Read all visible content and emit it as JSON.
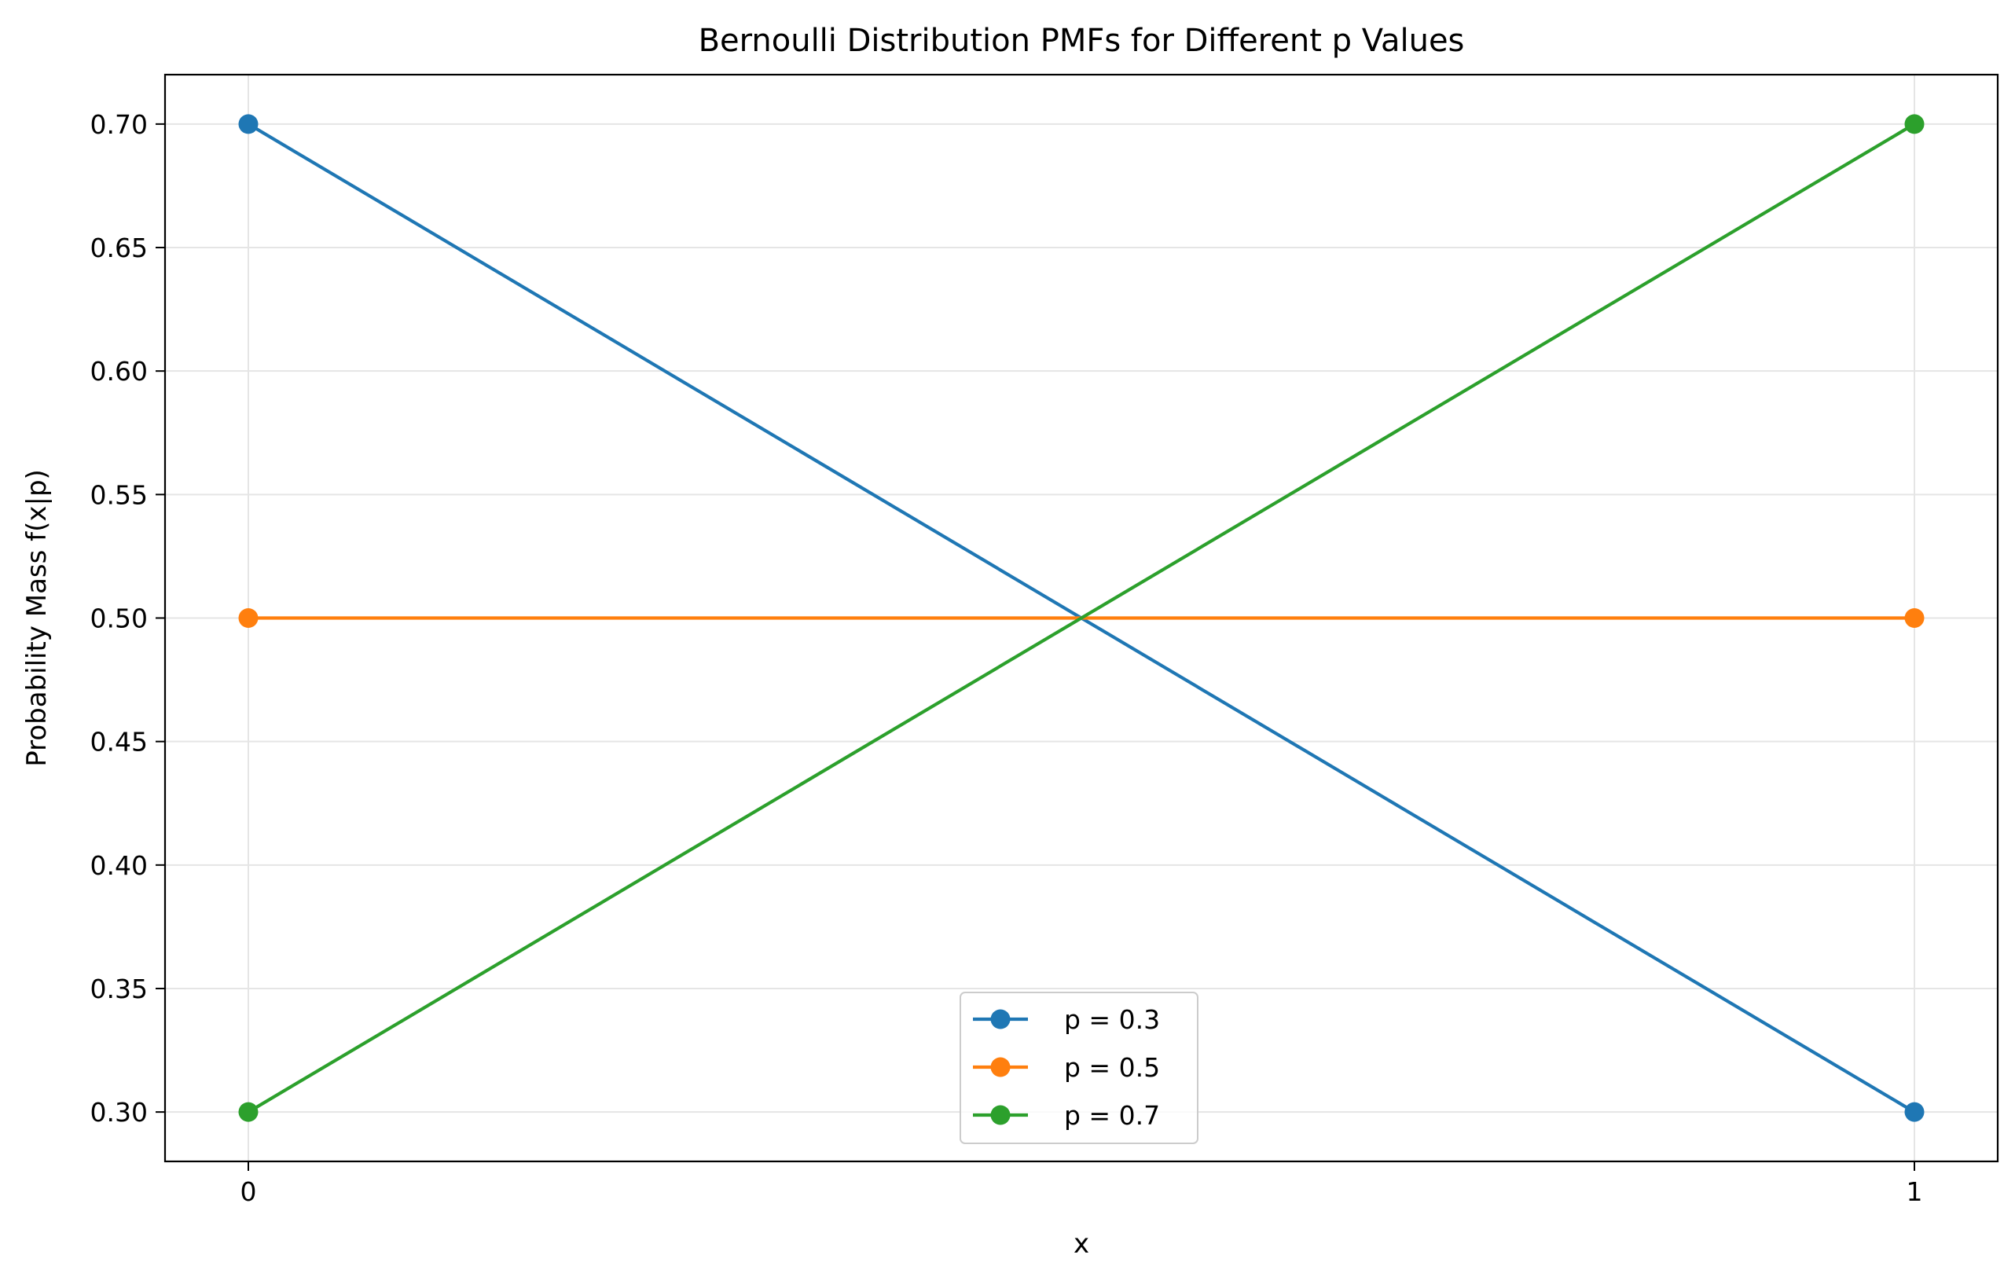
{
  "chart_data": {
    "type": "line",
    "title": "Bernoulli Distribution PMFs for Different p Values",
    "xlabel": "x",
    "ylabel": "Probability Mass f(x|p)",
    "x": [
      0,
      1
    ],
    "x_ticks": [
      "0",
      "1"
    ],
    "xlim": [
      -0.05,
      1.05
    ],
    "ylim": [
      0.28,
      0.72
    ],
    "y_ticks": [
      0.3,
      0.35,
      0.4,
      0.45,
      0.5,
      0.55,
      0.6,
      0.65,
      0.7
    ],
    "y_tick_labels": [
      "0.30",
      "0.35",
      "0.40",
      "0.45",
      "0.50",
      "0.55",
      "0.60",
      "0.65",
      "0.70"
    ],
    "grid": true,
    "legend_position": "lower center",
    "series": [
      {
        "name": "p = 0.3",
        "values": [
          0.7,
          0.3
        ],
        "color": "#1f77b4",
        "marker": "circle"
      },
      {
        "name": "p = 0.5",
        "values": [
          0.5,
          0.5
        ],
        "color": "#ff7f0e",
        "marker": "circle"
      },
      {
        "name": "p = 0.7",
        "values": [
          0.3,
          0.7
        ],
        "color": "#2ca02c",
        "marker": "circle"
      }
    ]
  }
}
